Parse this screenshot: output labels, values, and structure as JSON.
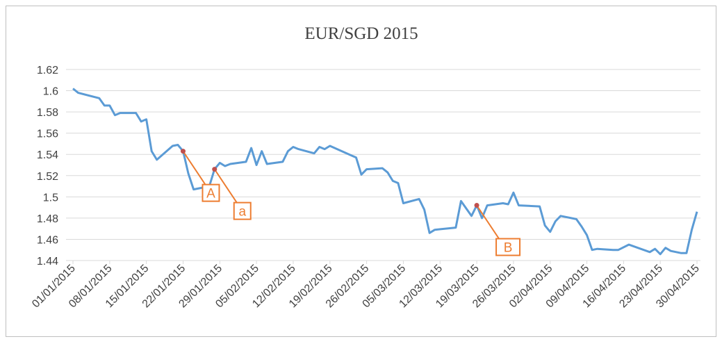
{
  "chart_data": {
    "type": "line",
    "title": "EUR/SGD 2015",
    "x": [
      "01/01/2015",
      "02/01/2015",
      "06/01/2015",
      "07/01/2015",
      "08/01/2015",
      "09/01/2015",
      "10/01/2015",
      "13/01/2015",
      "14/01/2015",
      "15/01/2015",
      "16/01/2015",
      "17/01/2015",
      "20/01/2015",
      "21/01/2015",
      "22/01/2015",
      "23/01/2015",
      "24/01/2015",
      "27/01/2015",
      "28/01/2015",
      "29/01/2015",
      "30/01/2015",
      "31/01/2015",
      "03/02/2015",
      "04/02/2015",
      "05/02/2015",
      "06/02/2015",
      "07/02/2015",
      "10/02/2015",
      "11/02/2015",
      "12/02/2015",
      "13/02/2015",
      "16/02/2015",
      "17/02/2015",
      "18/02/2015",
      "19/02/2015",
      "24/02/2015",
      "25/02/2015",
      "26/02/2015",
      "01/03/2015",
      "02/03/2015",
      "03/03/2015",
      "04/03/2015",
      "05/03/2015",
      "08/03/2015",
      "09/03/2015",
      "10/03/2015",
      "11/03/2015",
      "15/03/2015",
      "16/03/2015",
      "18/03/2015",
      "19/03/2015",
      "20/03/2015",
      "21/03/2015",
      "24/03/2015",
      "25/03/2015",
      "26/03/2015",
      "27/03/2015",
      "31/03/2015",
      "01/04/2015",
      "02/04/2015",
      "03/04/2015",
      "04/04/2015",
      "07/04/2015",
      "08/04/2015",
      "09/04/2015",
      "10/04/2015",
      "11/04/2015",
      "14/04/2015",
      "15/04/2015",
      "17/04/2015",
      "21/04/2015",
      "22/04/2015",
      "23/04/2015",
      "24/04/2015",
      "25/04/2015",
      "27/04/2015",
      "28/04/2015",
      "29/04/2015",
      "30/04/2015"
    ],
    "values": [
      1.602,
      1.598,
      1.593,
      1.586,
      1.586,
      1.577,
      1.579,
      1.579,
      1.571,
      1.573,
      1.543,
      1.535,
      1.548,
      1.549,
      1.543,
      1.522,
      1.507,
      1.51,
      1.526,
      1.532,
      1.529,
      1.531,
      1.533,
      1.546,
      1.53,
      1.543,
      1.531,
      1.533,
      1.543,
      1.547,
      1.545,
      1.541,
      1.547,
      1.545,
      1.548,
      1.537,
      1.521,
      1.526,
      1.527,
      1.523,
      1.515,
      1.513,
      1.494,
      1.498,
      1.488,
      1.466,
      1.469,
      1.471,
      1.496,
      1.482,
      1.492,
      1.48,
      1.492,
      1.494,
      1.493,
      1.504,
      1.492,
      1.491,
      1.473,
      1.467,
      1.477,
      1.482,
      1.479,
      1.472,
      1.464,
      1.45,
      1.451,
      1.45,
      1.45,
      1.455,
      1.448,
      1.451,
      1.446,
      1.452,
      1.449,
      1.447,
      1.447,
      1.469,
      1.486
    ],
    "color": "#5b9bd5",
    "xlim": [
      "01/01/2015",
      "30/04/2015"
    ],
    "xticks": [
      "01/01/2015",
      "08/01/2015",
      "15/01/2015",
      "22/01/2015",
      "29/01/2015",
      "05/02/2015",
      "12/02/2015",
      "19/02/2015",
      "26/02/2015",
      "05/03/2015",
      "12/03/2015",
      "19/03/2015",
      "26/03/2015",
      "02/04/2015",
      "09/04/2015",
      "16/04/2015",
      "23/04/2015",
      "30/04/2015"
    ],
    "ylim": [
      1.44,
      1.62
    ],
    "yticks": [
      1.44,
      1.46,
      1.48,
      1.5,
      1.52,
      1.54,
      1.56,
      1.58,
      1.6,
      1.62
    ],
    "grid": true,
    "annotations": [
      {
        "label": "A",
        "x": "22/01/2015",
        "y": 1.543,
        "color": "#ed7d31"
      },
      {
        "label": "a",
        "x": "28/01/2015",
        "y": 1.526,
        "color": "#ed7d31"
      },
      {
        "label": "B",
        "x": "19/03/2015",
        "y": 1.492,
        "color": "#ed7d31"
      }
    ]
  }
}
